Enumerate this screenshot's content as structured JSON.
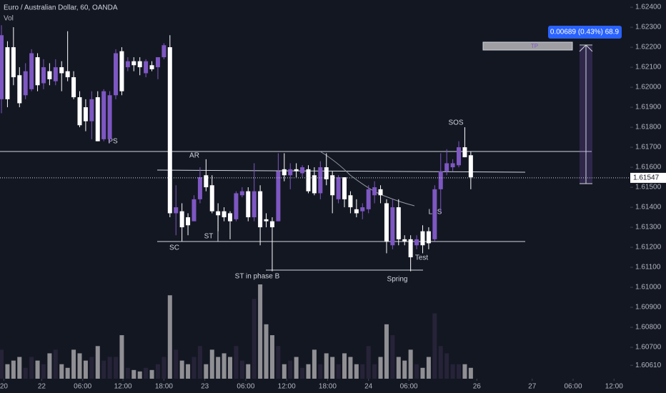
{
  "chart_data": {
    "type": "candlestick",
    "title": "Euro / Australian Dollar, 60, OANDA",
    "volume_label": "Vol",
    "open": [
      1.6194,
      1.622,
      1.622,
      1.6206,
      1.6196,
      1.6199,
      1.6215,
      1.6202,
      1.6208,
      1.6203,
      1.621,
      1.6208,
      1.6205,
      1.6195,
      1.619,
      1.6183,
      1.6195,
      1.6174,
      1.6174,
      1.6196,
      1.6218,
      1.621,
      1.6213,
      1.6213,
      1.6207,
      1.6211,
      1.621,
      1.6215,
      1.622,
      1.6137,
      1.6138,
      1.6135,
      1.6133,
      1.6144,
      1.6156,
      1.6151,
      1.6138,
      1.6138,
      1.6137,
      1.6134,
      1.6146,
      1.6148,
      1.6135,
      1.6148,
      1.6134,
      1.6133,
      1.6133,
      1.6159,
      1.6156,
      1.6159,
      1.6157,
      1.6159,
      1.6156,
      1.6147,
      1.616,
      1.6156,
      1.6144,
      1.6155,
      1.6146,
      1.6139,
      1.6138,
      1.6139,
      1.6146,
      1.6149,
      1.6142,
      1.6121,
      1.614,
      1.6124,
      1.6124,
      1.6121,
      1.6128,
      1.6128,
      1.6124,
      1.6149,
      1.6158,
      1.616,
      1.6161,
      1.617,
      1.6166
    ],
    "high": [
      1.6231,
      1.6223,
      1.623,
      1.621,
      1.6212,
      1.6219,
      1.6217,
      1.6214,
      1.6212,
      1.6214,
      1.6213,
      1.6228,
      1.6208,
      1.6198,
      1.6194,
      1.6198,
      1.6198,
      1.6199,
      1.6198,
      1.6219,
      1.622,
      1.6215,
      1.6215,
      1.6215,
      1.6214,
      1.6213,
      1.6215,
      1.6222,
      1.6226,
      1.6151,
      1.6142,
      1.6137,
      1.6146,
      1.616,
      1.6164,
      1.6156,
      1.6142,
      1.614,
      1.6138,
      1.6148,
      1.615,
      1.615,
      1.6162,
      1.6151,
      1.6137,
      1.6135,
      1.6167,
      1.6167,
      1.6162,
      1.6162,
      1.6161,
      1.6161,
      1.616,
      1.6163,
      1.6167,
      1.6158,
      1.6156,
      1.6155,
      1.6148,
      1.6144,
      1.6142,
      1.6151,
      1.6153,
      1.6151,
      1.6144,
      1.6144,
      1.6144,
      1.6126,
      1.6126,
      1.6126,
      1.6131,
      1.613,
      1.6151,
      1.6167,
      1.6169,
      1.6164,
      1.6173,
      1.618,
      1.6168
    ],
    "low": [
      1.6187,
      1.619,
      1.6201,
      1.619,
      1.6194,
      1.6198,
      1.6198,
      1.6199,
      1.6201,
      1.6201,
      1.6198,
      1.6203,
      1.6194,
      1.618,
      1.6178,
      1.6174,
      1.6173,
      1.6173,
      1.6172,
      1.6194,
      1.6196,
      1.6208,
      1.6208,
      1.6206,
      1.6205,
      1.6208,
      1.6204,
      1.6214,
      1.6135,
      1.6126,
      1.6123,
      1.6126,
      1.6133,
      1.6142,
      1.6148,
      1.6137,
      1.6128,
      1.6133,
      1.6124,
      1.6133,
      1.6145,
      1.6133,
      1.6133,
      1.6121,
      1.613,
      1.6108,
      1.6133,
      1.6153,
      1.6149,
      1.6155,
      1.6155,
      1.6147,
      1.6146,
      1.6144,
      1.6151,
      1.6137,
      1.6142,
      1.614,
      1.6137,
      1.6135,
      1.6134,
      1.6137,
      1.6142,
      1.6142,
      1.6117,
      1.6119,
      1.6121,
      1.6121,
      1.6108,
      1.6119,
      1.6117,
      1.6119,
      1.6123,
      1.6137,
      1.6156,
      1.6158,
      1.616,
      1.6165,
      1.6149
    ],
    "close": [
      1.6226,
      1.6194,
      1.6205,
      1.6192,
      1.6208,
      1.6217,
      1.6201,
      1.621,
      1.6204,
      1.621,
      1.6207,
      1.6205,
      1.6195,
      1.6181,
      1.6183,
      1.6194,
      1.6173,
      1.6198,
      1.6196,
      1.6217,
      1.6198,
      1.6213,
      1.6211,
      1.621,
      1.6213,
      1.6209,
      1.6215,
      1.6221,
      1.6137,
      1.614,
      1.613,
      1.6131,
      1.6144,
      1.6155,
      1.615,
      1.6138,
      1.6136,
      1.6135,
      1.6133,
      1.6147,
      1.6148,
      1.6135,
      1.6148,
      1.613,
      1.6133,
      1.613,
      1.6158,
      1.6156,
      1.6159,
      1.6158,
      1.616,
      1.6148,
      1.6147,
      1.616,
      1.6154,
      1.6146,
      1.6155,
      1.6144,
      1.614,
      1.6137,
      1.614,
      1.6149,
      1.615,
      1.6146,
      1.6123,
      1.614,
      1.6124,
      1.6123,
      1.6115,
      1.6124,
      1.6121,
      1.6122,
      1.6149,
      1.6158,
      1.6162,
      1.6162,
      1.617,
      1.6165,
      1.6155
    ],
    "volume": [
      40,
      20,
      25,
      30,
      15,
      30,
      25,
      20,
      35,
      40,
      20,
      15,
      40,
      35,
      25,
      30,
      45,
      25,
      30,
      30,
      60,
      15,
      12,
      10,
      15,
      12,
      20,
      30,
      115,
      40,
      25,
      20,
      30,
      45,
      20,
      40,
      30,
      35,
      30,
      45,
      25,
      20,
      110,
      130,
      75,
      60,
      45,
      20,
      25,
      30,
      15,
      20,
      40,
      20,
      35,
      30,
      20,
      35,
      30,
      20,
      20,
      45,
      20,
      30,
      75,
      60,
      30,
      25,
      40,
      20,
      15,
      30,
      90,
      45,
      35,
      20,
      20,
      20,
      15
    ],
    "up_color": "#7e57c2",
    "down_color": "#ffffff",
    "up_volume_color": "#262338",
    "down_volume_color": "#8f8f94",
    "ylim": [
      1.60543,
      1.62436
    ],
    "yticks": [
      {
        "value": 1.624,
        "label": "1.62400"
      },
      {
        "value": 1.623,
        "label": "1.62300"
      },
      {
        "value": 1.622,
        "label": "1.62200"
      },
      {
        "value": 1.621,
        "label": "1.62100"
      },
      {
        "value": 1.62,
        "label": "1.62000"
      },
      {
        "value": 1.619,
        "label": "1.61900"
      },
      {
        "value": 1.618,
        "label": "1.61800"
      },
      {
        "value": 1.617,
        "label": "1.61700"
      },
      {
        "value": 1.616,
        "label": "1.61600"
      },
      {
        "value": 1.615,
        "label": "1.61500"
      },
      {
        "value": 1.614,
        "label": "1.61400"
      },
      {
        "value": 1.613,
        "label": "1.61300"
      },
      {
        "value": 1.612,
        "label": "1.61200"
      },
      {
        "value": 1.611,
        "label": "1.61100"
      },
      {
        "value": 1.61,
        "label": "1.61000"
      },
      {
        "value": 1.609,
        "label": "1.60900"
      },
      {
        "value": 1.608,
        "label": "1.60800"
      },
      {
        "value": 1.607,
        "label": "1.60700"
      },
      {
        "value": 1.6061,
        "label": "1.60610"
      }
    ],
    "xlim": [
      -0.24,
      104.5
    ],
    "xticks": [
      {
        "value": 0.4,
        "label": "20"
      },
      {
        "value": 6.7,
        "label": "22"
      },
      {
        "value": 13.5,
        "label": "06:00"
      },
      {
        "value": 20.2,
        "label": "12:00"
      },
      {
        "value": 27,
        "label": "18:00"
      },
      {
        "value": 33.8,
        "label": "23"
      },
      {
        "value": 40.6,
        "label": "06:00"
      },
      {
        "value": 47.4,
        "label": "12:00"
      },
      {
        "value": 54.2,
        "label": "18:00"
      },
      {
        "value": 61,
        "label": "24"
      },
      {
        "value": 67.7,
        "label": "06:00"
      },
      {
        "value": 79,
        "label": "26"
      },
      {
        "value": 88.2,
        "label": "27"
      },
      {
        "value": 95,
        "label": "06:00"
      },
      {
        "value": 101.8,
        "label": "12:00"
      }
    ],
    "last_price": 1.61547,
    "annotations": [
      "PS",
      "AR",
      "SC",
      "ST",
      "ST in phase B",
      "Spring",
      "Test",
      "LPS",
      "SOS"
    ],
    "target_label": "TP",
    "measure_label": "0.00689 (0.43%) 68.9"
  }
}
